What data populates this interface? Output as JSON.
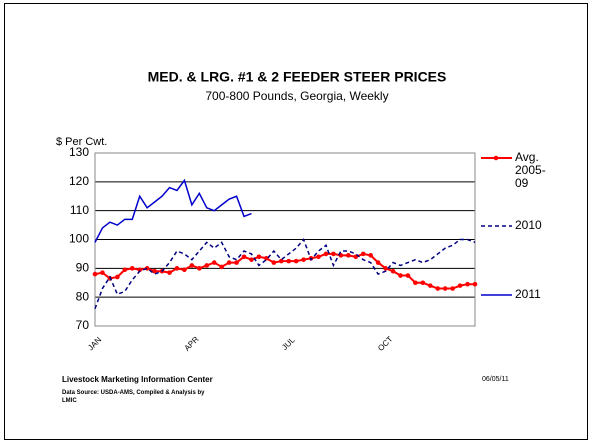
{
  "chart_data": {
    "type": "line",
    "title": "MED. & LRG. #1 & 2  FEEDER  STEER  PRICES",
    "subtitle": "700-800 Pounds, Georgia, Weekly",
    "y_label": "$ Per Cwt.",
    "categories": [
      "JAN",
      null,
      null,
      null,
      null,
      null,
      null,
      null,
      null,
      null,
      null,
      null,
      null,
      "APR",
      null,
      null,
      null,
      null,
      null,
      null,
      null,
      null,
      null,
      null,
      null,
      null,
      "JUL",
      null,
      null,
      null,
      null,
      null,
      null,
      null,
      null,
      null,
      null,
      null,
      null,
      "OCT",
      null,
      null,
      null,
      null,
      null,
      null,
      null,
      null,
      null,
      null,
      null,
      null
    ],
    "ylim": [
      70,
      130
    ],
    "yticks": [
      70,
      80,
      90,
      100,
      110,
      120,
      130
    ],
    "grid": true,
    "legend": "right",
    "series": [
      {
        "name": "Avg. 2005-09",
        "color": "#ff0000",
        "style": "solid",
        "marker": "circle",
        "values": [
          88,
          88.5,
          86.5,
          87,
          89.5,
          90,
          89.5,
          90,
          89,
          89,
          88.5,
          90,
          89.5,
          91,
          90,
          91,
          92,
          90.5,
          92,
          92,
          94,
          93,
          94,
          93.5,
          92,
          92.5,
          92.5,
          92.5,
          93,
          93.5,
          94,
          95,
          95,
          94.5,
          94.5,
          94,
          95,
          94.5,
          92,
          90,
          89,
          87.5,
          87.5,
          85,
          85,
          84,
          83,
          83,
          83,
          84,
          84.5,
          84.5
        ]
      },
      {
        "name": "2010",
        "color": "#000080",
        "style": "dashed",
        "values": [
          76,
          83,
          87,
          81,
          82,
          86,
          89,
          90,
          88,
          89,
          92,
          96,
          95,
          93,
          96,
          99,
          97,
          99,
          94,
          93,
          96,
          95,
          91,
          93,
          96,
          93,
          95,
          97,
          100,
          93,
          96,
          98,
          91,
          96,
          96,
          95,
          93,
          92,
          88,
          89,
          92,
          91,
          92,
          93,
          92,
          93,
          95,
          97,
          98,
          100,
          100,
          99
        ]
      },
      {
        "name": "2011",
        "color": "#0000cc",
        "style": "solid",
        "values": [
          99,
          104,
          106,
          105,
          107,
          107,
          115,
          111,
          113,
          115,
          118,
          117,
          120.5,
          112,
          116,
          111,
          110,
          112,
          114,
          115,
          108,
          109,
          null,
          null,
          null,
          null,
          null,
          null,
          null,
          null,
          null,
          null,
          null,
          null,
          null,
          null,
          null,
          null,
          null,
          null,
          null,
          null,
          null,
          null,
          null,
          null,
          null,
          null,
          null,
          null,
          null,
          null
        ]
      }
    ],
    "source_org": "Livestock Marketing Information Center",
    "source_note": "Data Source:  USDA-AMS, Compiled & Analysis by LMIC",
    "date": "06/05/11"
  }
}
